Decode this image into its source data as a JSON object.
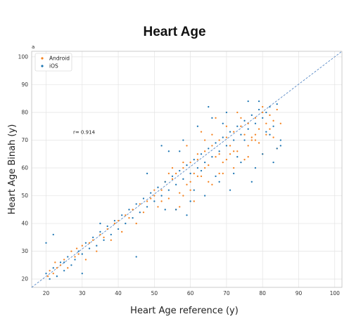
{
  "chart_data": {
    "type": "scatter",
    "title": "Heart Age",
    "panel_label": "a",
    "xlabel": "Heart Age reference (y)",
    "ylabel": "Heart Age Binah (y)",
    "xlim": [
      16,
      102
    ],
    "ylim": [
      17,
      102
    ],
    "xticks": [
      20,
      30,
      40,
      50,
      60,
      70,
      80,
      90,
      100
    ],
    "yticks": [
      20,
      30,
      40,
      50,
      60,
      70,
      80,
      90,
      100
    ],
    "grid": true,
    "legend_position": "top-left",
    "annotation": {
      "text": "r= 0.914",
      "x": 27.5,
      "y": 72.3
    },
    "identity_line": {
      "from": [
        16,
        17
      ],
      "to": [
        102,
        102
      ],
      "style": "dashed",
      "color": "#4a7fc1"
    },
    "series": [
      {
        "name": "Android",
        "color": "#f5821f",
        "x": [
          20.5,
          21,
          22,
          22.5,
          23,
          24,
          25,
          26,
          27,
          28,
          28.5,
          29,
          30,
          31,
          32,
          33,
          34,
          35,
          36,
          37,
          38,
          39,
          40,
          41,
          42,
          43,
          44,
          45,
          46,
          47,
          48,
          49,
          50,
          51,
          52,
          53,
          54,
          55,
          56,
          57,
          58,
          59,
          60,
          61,
          62,
          63,
          64,
          65,
          66,
          67,
          68,
          69,
          70,
          71,
          72,
          73,
          74,
          75,
          76,
          77,
          78,
          79,
          80,
          81,
          82,
          83,
          84,
          85,
          55,
          58,
          60,
          62,
          64,
          66,
          68,
          70,
          72,
          74,
          76,
          78,
          80,
          82,
          84,
          50,
          52,
          54,
          56,
          58,
          60,
          62,
          64,
          66,
          68,
          70,
          72,
          74,
          76,
          78,
          80,
          57,
          59,
          61,
          63,
          65,
          67,
          69,
          71,
          73,
          75,
          77,
          79,
          81,
          83
        ],
        "y": [
          21,
          23,
          22,
          26,
          24,
          25,
          27,
          24,
          30,
          28,
          31,
          29,
          32,
          27,
          33,
          34,
          30,
          36,
          35,
          38,
          34,
          40,
          41,
          37,
          43,
          42,
          45,
          40,
          47,
          44,
          48,
          49,
          50,
          46,
          52,
          55,
          49,
          56,
          58,
          51,
          60,
          54,
          62,
          58,
          63,
          57,
          66,
          61,
          68,
          64,
          70,
          62,
          71,
          68,
          73,
          66,
          75,
          72,
          76,
          70,
          78,
          74,
          80,
          72,
          79,
          77,
          81,
          76,
          60,
          50,
          55,
          65,
          60,
          72,
          58,
          63,
          66,
          75,
          68,
          70,
          65,
          74,
          67,
          52,
          48,
          58,
          45,
          62,
          52,
          57,
          70,
          54,
          65,
          75,
          60,
          78,
          64,
          72,
          82,
          46,
          68,
          48,
          73,
          55,
          78,
          58,
          65,
          80,
          63,
          71,
          69,
          76,
          71
        ]
      },
      {
        "name": "iOS",
        "color": "#1f77b4",
        "x": [
          20,
          21,
          22,
          23,
          24,
          25,
          26,
          27,
          28,
          29,
          30,
          31,
          32,
          33,
          34,
          35,
          36,
          37,
          38,
          39,
          40,
          41,
          42,
          43,
          44,
          45,
          46,
          47,
          48,
          49,
          50,
          51,
          52,
          53,
          54,
          55,
          56,
          57,
          58,
          59,
          60,
          61,
          62,
          63,
          64,
          65,
          66,
          67,
          68,
          69,
          70,
          71,
          72,
          73,
          74,
          75,
          76,
          77,
          78,
          79,
          80,
          81,
          82,
          83,
          84,
          85,
          54,
          56,
          58,
          60,
          62,
          64,
          66,
          68,
          70,
          72,
          74,
          76,
          78,
          80,
          82,
          84,
          20,
          22,
          25,
          30,
          35,
          45,
          48,
          53,
          57,
          61,
          65,
          67,
          69,
          71,
          73,
          75,
          77,
          79,
          81,
          83,
          85,
          52,
          59,
          63
        ],
        "y": [
          22,
          20,
          24,
          21,
          26,
          23,
          28,
          25,
          27,
          30,
          29,
          33,
          31,
          35,
          32,
          37,
          34,
          39,
          36,
          41,
          38,
          43,
          40,
          45,
          42,
          47,
          44,
          49,
          46,
          51,
          48,
          53,
          50,
          55,
          52,
          57,
          54,
          59,
          56,
          61,
          58,
          63,
          60,
          65,
          62,
          67,
          64,
          69,
          66,
          71,
          68,
          73,
          70,
          75,
          72,
          77,
          74,
          79,
          76,
          81,
          78,
          80,
          82,
          75,
          83,
          70,
          66,
          45,
          70,
          48,
          75,
          50,
          78,
          55,
          80,
          58,
          62,
          84,
          60,
          65,
          72,
          67,
          33,
          36,
          26,
          22,
          40,
          28,
          58,
          45,
          66,
          52,
          82,
          57,
          76,
          52,
          64,
          70,
          55,
          84,
          73,
          62,
          68,
          68,
          43,
          59
        ]
      }
    ]
  }
}
